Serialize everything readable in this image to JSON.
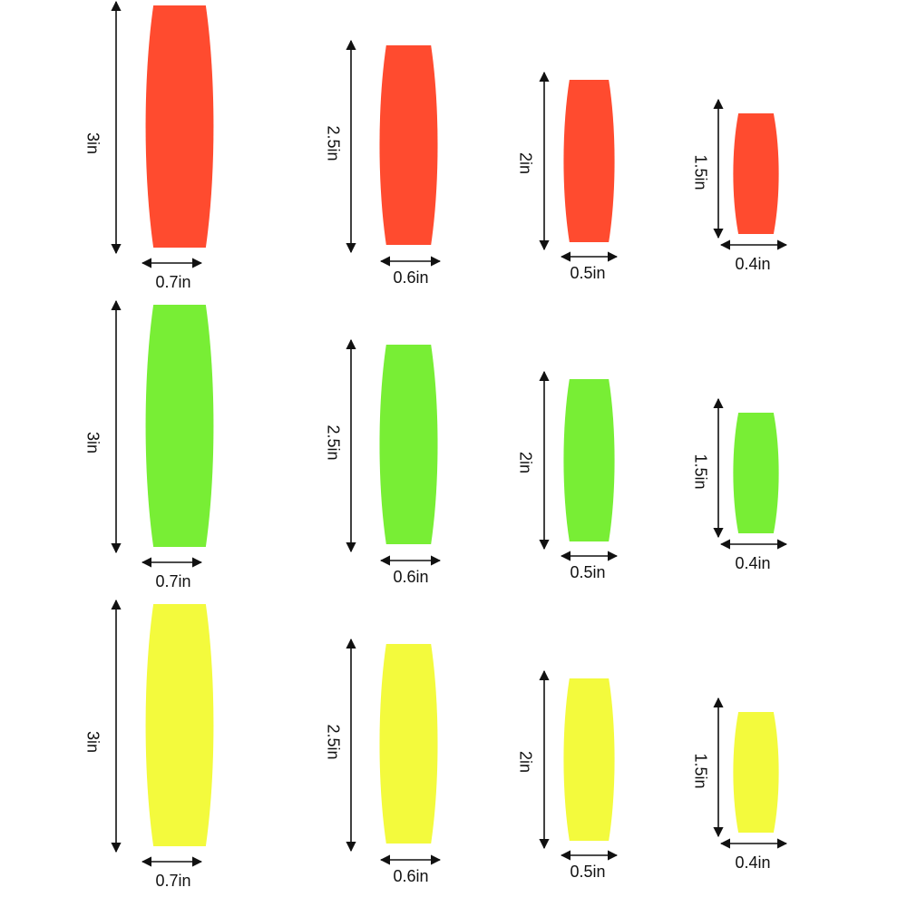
{
  "rows": [
    {
      "items": [
        {
          "height_label": "3in",
          "width_label": "0.7in"
        },
        {
          "height_label": "2.5in",
          "width_label": "0.6in"
        },
        {
          "height_label": "2in",
          "width_label": "0.5in"
        },
        {
          "height_label": "1.5in",
          "width_label": "0.4in"
        }
      ]
    },
    {
      "items": [
        {
          "height_label": "3in",
          "width_label": "0.7in"
        },
        {
          "height_label": "2.5in",
          "width_label": "0.6in"
        },
        {
          "height_label": "2in",
          "width_label": "0.5in"
        },
        {
          "height_label": "1.5in",
          "width_label": "0.4in"
        }
      ]
    },
    {
      "items": [
        {
          "height_label": "3in",
          "width_label": "0.7in"
        },
        {
          "height_label": "2.5in",
          "width_label": "0.6in"
        },
        {
          "height_label": "2in",
          "width_label": "0.5in"
        },
        {
          "height_label": "1.5in",
          "width_label": "0.4in"
        }
      ]
    }
  ]
}
